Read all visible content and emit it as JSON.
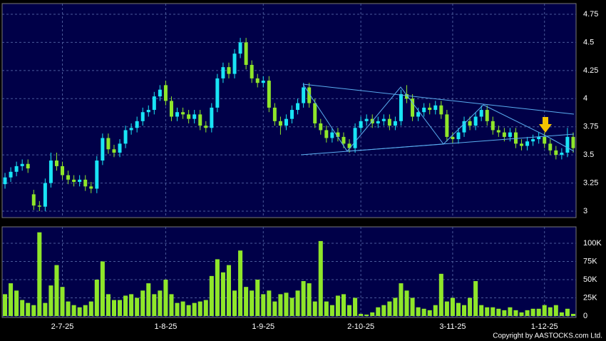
{
  "chart_data": {
    "type": "candlestick",
    "categories": [
      null,
      null,
      null,
      null,
      null,
      null,
      null,
      null,
      null,
      null,
      "2-7-25",
      null,
      null,
      null,
      null,
      null,
      null,
      null,
      null,
      null,
      null,
      null,
      null,
      null,
      null,
      null,
      null,
      null,
      "1-8-25",
      null,
      null,
      null,
      null,
      null,
      null,
      null,
      null,
      null,
      null,
      null,
      null,
      null,
      null,
      null,
      null,
      "1-9-25",
      null,
      null,
      null,
      null,
      null,
      null,
      null,
      null,
      null,
      null,
      null,
      null,
      null,
      null,
      null,
      null,
      "2-10-25",
      null,
      null,
      null,
      null,
      null,
      null,
      null,
      null,
      null,
      null,
      null,
      null,
      null,
      null,
      null,
      "3-11-25",
      null,
      null,
      null,
      null,
      null,
      null,
      null,
      null,
      null,
      null,
      null,
      null,
      null,
      null,
      null,
      "1-12-25",
      null,
      null,
      null,
      null,
      null
    ],
    "open": [
      3.24,
      3.3,
      3.35,
      3.4,
      3.42,
      3.15,
      3.05,
      3.04,
      3.25,
      3.45,
      3.4,
      3.32,
      3.28,
      3.26,
      3.28,
      3.22,
      3.2,
      3.45,
      3.65,
      3.55,
      3.52,
      3.6,
      3.72,
      3.74,
      3.8,
      3.88,
      3.9,
      4.02,
      4.12,
      3.98,
      3.84,
      3.88,
      3.86,
      3.82,
      3.86,
      3.76,
      3.74,
      3.92,
      4.18,
      4.28,
      4.22,
      4.4,
      4.5,
      4.3,
      4.18,
      4.14,
      4.16,
      3.92,
      3.8,
      3.76,
      3.82,
      3.9,
      3.96,
      4.1,
      3.96,
      3.78,
      3.72,
      3.65,
      3.7,
      3.66,
      3.6,
      3.56,
      3.74,
      3.8,
      3.82,
      3.78,
      3.8,
      3.82,
      3.76,
      3.8,
      4.04,
      4.0,
      3.84,
      3.88,
      3.92,
      3.9,
      3.94,
      3.86,
      3.66,
      3.64,
      3.7,
      3.8,
      3.76,
      3.84,
      3.9,
      3.8,
      3.72,
      3.7,
      3.66,
      3.7,
      3.6,
      3.58,
      3.62,
      3.64,
      3.66,
      3.6,
      3.54,
      3.5,
      3.52,
      3.66
    ],
    "high": [
      3.34,
      3.39,
      3.44,
      3.46,
      3.46,
      3.19,
      3.09,
      3.29,
      3.52,
      3.52,
      3.44,
      3.36,
      3.32,
      3.32,
      3.32,
      3.26,
      3.49,
      3.69,
      3.69,
      3.59,
      3.64,
      3.76,
      3.78,
      3.84,
      3.92,
      3.94,
      4.06,
      4.12,
      4.16,
      4.02,
      3.92,
      3.92,
      3.9,
      3.9,
      3.9,
      3.8,
      3.96,
      4.22,
      4.32,
      4.32,
      4.44,
      4.54,
      4.54,
      4.34,
      4.22,
      4.2,
      4.2,
      3.96,
      3.84,
      3.86,
      3.94,
      4.0,
      4.14,
      4.14,
      4.0,
      3.82,
      3.76,
      3.74,
      3.74,
      3.7,
      3.64,
      3.78,
      3.84,
      3.86,
      3.86,
      3.84,
      3.86,
      3.86,
      3.84,
      4.08,
      4.12,
      4.04,
      3.92,
      3.96,
      3.96,
      3.98,
      3.98,
      3.9,
      3.7,
      3.74,
      3.84,
      3.84,
      3.88,
      3.94,
      3.94,
      3.84,
      3.76,
      3.74,
      3.74,
      3.74,
      3.64,
      3.66,
      3.68,
      3.7,
      3.7,
      3.64,
      3.58,
      3.56,
      3.74,
      3.7
    ],
    "low": [
      3.2,
      3.26,
      3.31,
      3.36,
      3.34,
      3.01,
      3.0,
      3.0,
      3.21,
      3.36,
      3.28,
      3.24,
      3.22,
      3.22,
      3.18,
      3.16,
      3.16,
      3.41,
      3.51,
      3.48,
      3.48,
      3.56,
      3.68,
      3.7,
      3.76,
      3.84,
      3.86,
      3.98,
      3.94,
      3.8,
      3.8,
      3.82,
      3.78,
      3.78,
      3.72,
      3.7,
      3.7,
      3.88,
      4.14,
      4.18,
      4.18,
      4.36,
      4.26,
      4.14,
      4.1,
      4.1,
      3.88,
      3.76,
      3.68,
      3.72,
      3.78,
      3.86,
      3.92,
      3.92,
      3.74,
      3.68,
      3.61,
      3.61,
      3.62,
      3.56,
      3.52,
      3.52,
      3.7,
      3.76,
      3.74,
      3.74,
      3.76,
      3.72,
      3.72,
      3.76,
      3.96,
      3.8,
      3.8,
      3.84,
      3.86,
      3.86,
      3.82,
      3.62,
      3.6,
      3.6,
      3.66,
      3.72,
      3.72,
      3.8,
      3.76,
      3.68,
      3.66,
      3.62,
      3.62,
      3.56,
      3.54,
      3.54,
      3.58,
      3.6,
      3.56,
      3.5,
      3.46,
      3.46,
      3.48,
      3.52
    ],
    "close": [
      3.3,
      3.35,
      3.4,
      3.42,
      3.38,
      3.05,
      3.04,
      3.25,
      3.45,
      3.4,
      3.32,
      3.28,
      3.26,
      3.28,
      3.22,
      3.2,
      3.45,
      3.65,
      3.55,
      3.52,
      3.6,
      3.72,
      3.74,
      3.8,
      3.88,
      3.9,
      4.02,
      4.08,
      3.98,
      3.84,
      3.88,
      3.86,
      3.82,
      3.86,
      3.76,
      3.74,
      3.92,
      4.18,
      4.28,
      4.22,
      4.4,
      4.5,
      4.3,
      4.18,
      4.14,
      4.16,
      3.92,
      3.8,
      3.76,
      3.82,
      3.9,
      3.96,
      4.1,
      3.96,
      3.78,
      3.72,
      3.65,
      3.7,
      3.66,
      3.6,
      3.56,
      3.74,
      3.8,
      3.82,
      3.78,
      3.8,
      3.82,
      3.76,
      3.8,
      4.04,
      4.0,
      3.84,
      3.88,
      3.92,
      3.9,
      3.94,
      3.86,
      3.66,
      3.64,
      3.7,
      3.8,
      3.76,
      3.84,
      3.9,
      3.8,
      3.72,
      3.7,
      3.66,
      3.7,
      3.6,
      3.58,
      3.62,
      3.64,
      3.66,
      3.6,
      3.54,
      3.5,
      3.52,
      3.66,
      3.56
    ],
    "ylim": [
      2.943,
      4.845
    ],
    "yticks": [
      3,
      3.25,
      3.5,
      3.75,
      4,
      4.25,
      4.5,
      4.75
    ],
    "up_color": "#19e4f5",
    "down_color": "#8fe62a",
    "grid": true,
    "volume": {
      "values": [
        30000,
        45000,
        35000,
        22000,
        18000,
        15000,
        115000,
        18000,
        42000,
        70000,
        40000,
        20000,
        15000,
        12000,
        15000,
        20000,
        50000,
        75000,
        30000,
        22000,
        22000,
        28000,
        30000,
        25000,
        35000,
        45000,
        30000,
        35000,
        50000,
        30000,
        18000,
        20000,
        15000,
        18000,
        20000,
        22000,
        55000,
        78000,
        60000,
        70000,
        35000,
        90000,
        40000,
        35000,
        50000,
        30000,
        35000,
        20000,
        30000,
        32000,
        25000,
        35000,
        48000,
        45000,
        20000,
        103000,
        20000,
        15000,
        28000,
        30000,
        15000,
        25000,
        3000,
        2000,
        5000,
        12000,
        15000,
        20000,
        25000,
        45000,
        35000,
        25000,
        12000,
        10000,
        8000,
        15000,
        58000,
        20000,
        25000,
        18000,
        15000,
        25000,
        48000,
        15000,
        12000,
        12000,
        10000,
        8000,
        12000,
        8000,
        5000,
        8000,
        10000,
        10000,
        15000,
        12000,
        15000,
        5000,
        10000,
        3000
      ],
      "color": "#8fe62a",
      "ylim": [
        0,
        122500
      ],
      "yticks": [
        0,
        {
          "value": 25000,
          "label": "25K"
        },
        {
          "value": 50000,
          "label": "50K"
        },
        {
          "value": 75000,
          "label": "75K"
        },
        {
          "value": 100000,
          "label": "100K"
        }
      ]
    }
  },
  "copyright": "Copyright by AASTOCKS.com Ltd."
}
